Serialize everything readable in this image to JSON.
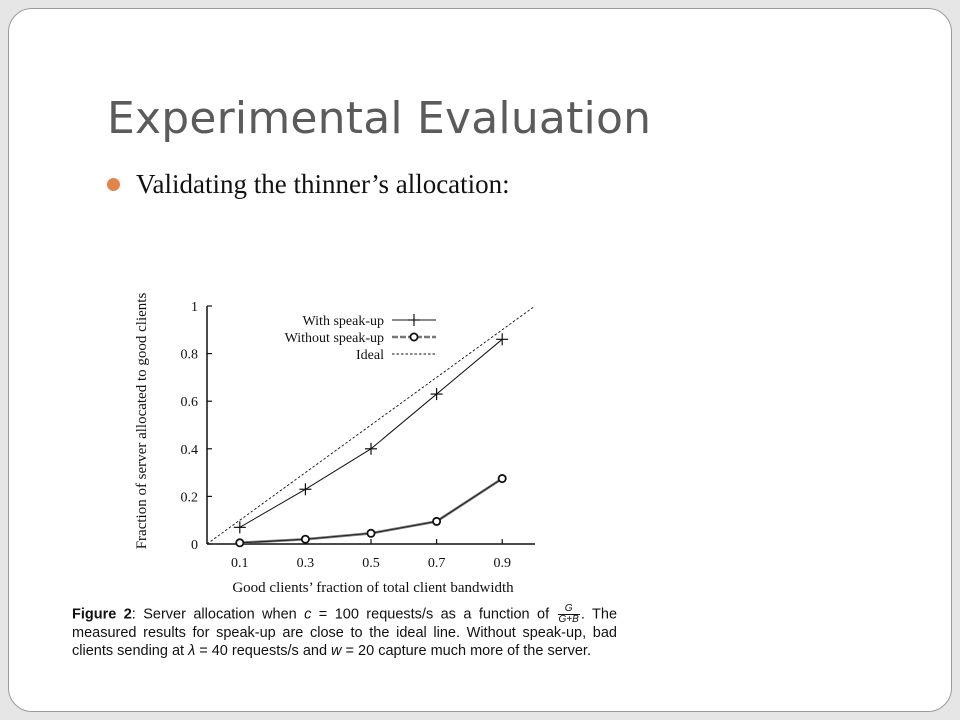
{
  "slide": {
    "title": "Experimental Evaluation",
    "bullet": "Validating the thinner’s allocation:"
  },
  "colors": {
    "background": "#ffffff",
    "title": "#5b5b5b",
    "bullet_dot": "#e2844b",
    "ink": "#111111"
  },
  "chart_data": {
    "type": "line",
    "title": "",
    "xlabel": "Good clients’ fraction of total client bandwidth",
    "ylabel": "Fraction of server allocated to good clients",
    "x": [
      0.1,
      0.3,
      0.5,
      0.7,
      0.9
    ],
    "x_tick_labels": [
      "0.1",
      "0.3",
      "0.5",
      "0.7",
      "0.9"
    ],
    "y_tick_labels": [
      "0",
      "0.2",
      "0.4",
      "0.6",
      "0.8",
      "1"
    ],
    "y_ticks": [
      0,
      0.2,
      0.4,
      0.6,
      0.8,
      1
    ],
    "xlim": [
      0,
      1
    ],
    "ylim": [
      0,
      1
    ],
    "grid": false,
    "legend_position": "top-left",
    "series": [
      {
        "name": "With speak-up",
        "marker": "plus",
        "values": [
          0.07,
          0.23,
          0.4,
          0.63,
          0.86
        ]
      },
      {
        "name": "Without speak-up",
        "marker": "circle",
        "values": [
          0.005,
          0.02,
          0.045,
          0.095,
          0.275
        ]
      },
      {
        "name": "Ideal",
        "marker": "none",
        "style": "dashed",
        "x": [
          0,
          1
        ],
        "values": [
          0,
          1
        ]
      }
    ]
  },
  "caption": {
    "figure_label": "Figure 2",
    "part1": ": Server allocation when ",
    "c_var": "c",
    "part2": " = 100 requests/s as a function of ",
    "frac_num": "G",
    "frac_den": "G+B",
    "part3": ". The measured results for speak-up are close to the ideal line. Without speak-up, bad clients sending at ",
    "lambda_var": "λ",
    "part4": " = 40 requests/s and ",
    "w_var": "w",
    "part5": " = 20 capture much more of the server."
  }
}
